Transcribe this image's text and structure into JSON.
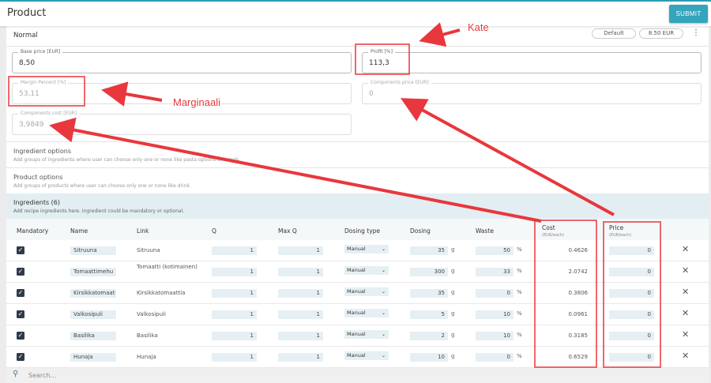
{
  "header": {
    "title": "Product",
    "submit_label": "SUBMIT"
  },
  "variant": {
    "name": "Normal",
    "badge_default": "Default",
    "badge_price": "8.50 EUR",
    "menu_icon": "kebab-icon"
  },
  "fields": {
    "base_price": {
      "label": "Base price [EUR]",
      "value": "8,50"
    },
    "profit": {
      "label": "Profit [%]",
      "value": "113,3"
    },
    "margin": {
      "label": "Margin Percent [%]",
      "value": "53,11"
    },
    "components_price": {
      "label": "Components price [EUR]",
      "value": "0"
    },
    "components_cost": {
      "label": "Components cost [EUR]",
      "value": "3,9849"
    }
  },
  "sections": {
    "ingredient_options": {
      "title": "Ingredient options",
      "desc": "Add groups of ingredients where user can choose only one or none like pasta options on meals."
    },
    "product_options": {
      "title": "Product options",
      "desc": "Add groups of products where user can choose only one or none like drink."
    },
    "ingredients": {
      "title": "Ingredients (6)",
      "desc": "Add recipe ingredients here. Ingredient could be mandatory or optional."
    }
  },
  "table": {
    "headers": {
      "mandatory": "Mandatory",
      "name": "Name",
      "link": "Link",
      "q": "Q",
      "maxq": "Max Q",
      "dosing_type": "Dosing type",
      "dosing": "Dosing",
      "waste": "Waste",
      "cost": "Cost",
      "cost_sub": "(EUR/each)",
      "price": "Price",
      "price_sub": "(EUR/each)"
    },
    "rows": [
      {
        "mandatory": true,
        "name": "Sitruuna",
        "link": "Sitruuna",
        "q": "1",
        "maxq": "1",
        "dosing_type": "Manual",
        "dosing": "35",
        "dosing_unit": "g",
        "waste": "50",
        "waste_unit": "%",
        "cost": "0.4626",
        "price": "0"
      },
      {
        "mandatory": true,
        "name": "Tomaattimehu",
        "link": "Tomaatti (kotimainen)",
        "q": "1",
        "maxq": "1",
        "dosing_type": "Manual",
        "dosing": "300",
        "dosing_unit": "g",
        "waste": "33",
        "waste_unit": "%",
        "cost": "2.0742",
        "price": "0"
      },
      {
        "mandatory": true,
        "name": "Kirsikkatomaat",
        "link": "Kirsikkatomaattia",
        "q": "1",
        "maxq": "1",
        "dosing_type": "Manual",
        "dosing": "35",
        "dosing_unit": "g",
        "waste": "0",
        "waste_unit": "%",
        "cost": "0.3806",
        "price": "0"
      },
      {
        "mandatory": true,
        "name": "Valkosipuli",
        "link": "Valkosipuli",
        "q": "1",
        "maxq": "1",
        "dosing_type": "Manual",
        "dosing": "5",
        "dosing_unit": "g",
        "waste": "10",
        "waste_unit": "%",
        "cost": "0.0961",
        "price": "0"
      },
      {
        "mandatory": true,
        "name": "Basilika",
        "link": "Basilika",
        "q": "1",
        "maxq": "1",
        "dosing_type": "Manual",
        "dosing": "2",
        "dosing_unit": "g",
        "waste": "10",
        "waste_unit": "%",
        "cost": "0.3185",
        "price": "0"
      },
      {
        "mandatory": true,
        "name": "Hunaja",
        "link": "Hunaja",
        "q": "1",
        "maxq": "1",
        "dosing_type": "Manual",
        "dosing": "10",
        "dosing_unit": "g",
        "waste": "0",
        "waste_unit": "%",
        "cost": "0.6529",
        "price": "0"
      }
    ]
  },
  "search": {
    "placeholder": "Search..."
  },
  "annotations": {
    "kate": "Kate",
    "marginaali": "Marginaali",
    "color": "#e8373d"
  }
}
